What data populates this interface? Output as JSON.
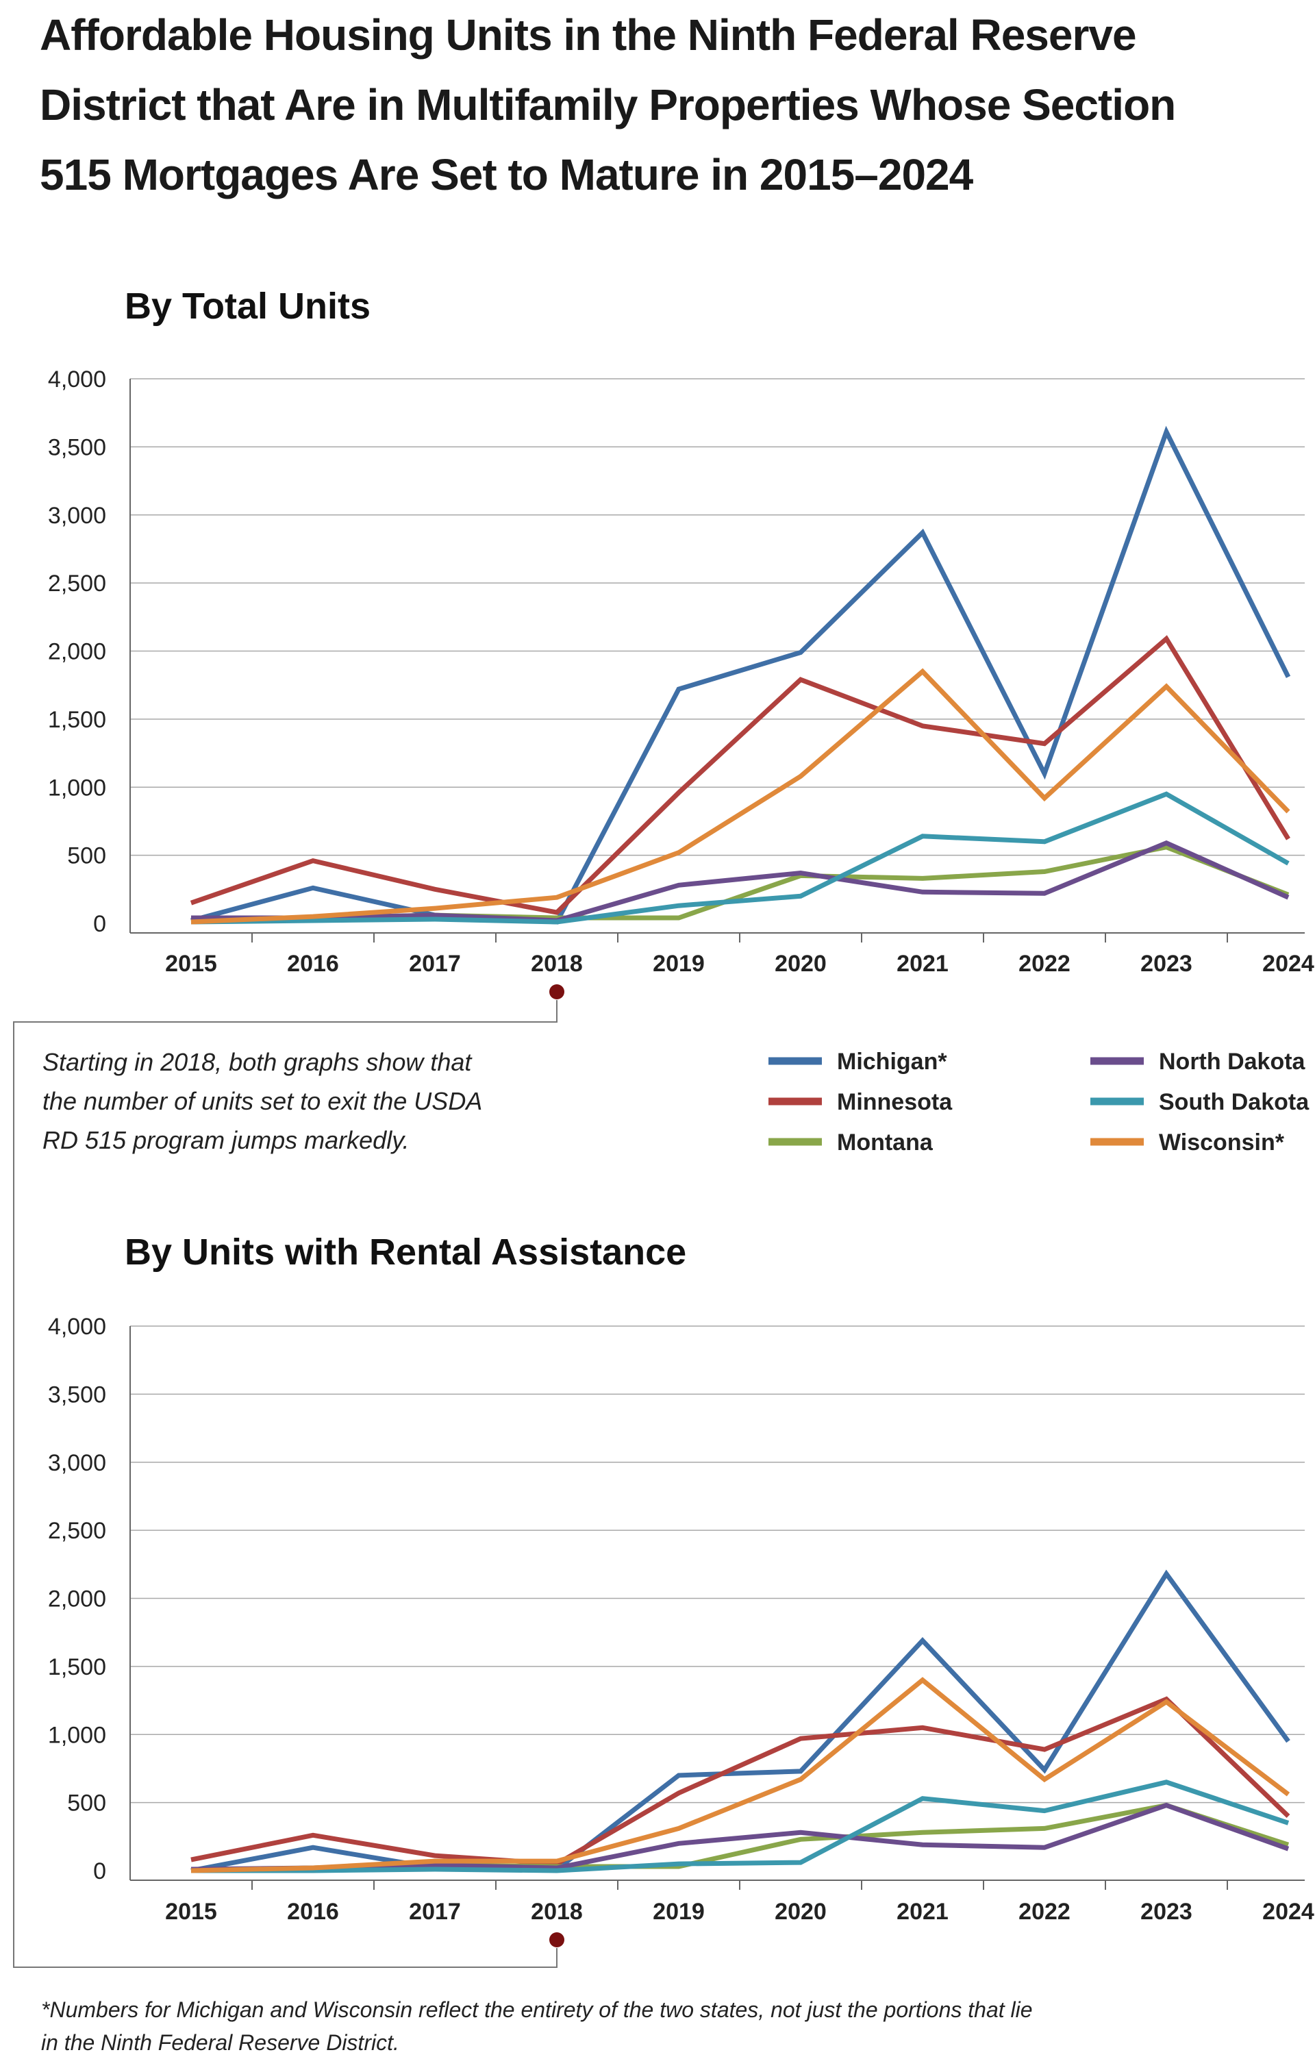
{
  "title_lines": [
    "Affordable Housing Units in the Ninth Federal Reserve",
    "District that Are in Multifamily Properties Whose Section",
    "515 Mortgages Are Set to Mature in 2015–2024"
  ],
  "annotation_lines": [
    "Starting in 2018, both graphs show that",
    "the number of units set to exit the USDA",
    "RD 515 program jumps markedly."
  ],
  "footnote_lines": [
    "*Numbers for Michigan and Wisconsin reflect the entirety of the two states, not just the portions that lie",
    "in the Ninth Federal Reserve District."
  ],
  "legend": [
    {
      "label": "Michigan*",
      "color": "#3f6fa6"
    },
    {
      "label": "Minnesota",
      "color": "#b0413e"
    },
    {
      "label": "Montana",
      "color": "#89a64a"
    },
    {
      "label": "North Dakota",
      "color": "#6a4d8c"
    },
    {
      "label": "South Dakota",
      "color": "#3b98ad"
    },
    {
      "label": "Wisconsin*",
      "color": "#e0893a"
    }
  ],
  "highlight_year": "2018",
  "highlight_color": "#7a1010",
  "chart_data": [
    {
      "type": "line",
      "title": "By Total Units",
      "categories": [
        "2015",
        "2016",
        "2017",
        "2018",
        "2019",
        "2020",
        "2021",
        "2022",
        "2023",
        "2024"
      ],
      "ylim": [
        0,
        4000
      ],
      "yticks": [
        "0",
        "500",
        "1,000",
        "1,500",
        "2,000",
        "2,500",
        "3,000",
        "3,500",
        "4,000"
      ],
      "grid": true,
      "series": [
        {
          "name": "Michigan*",
          "color": "#3f6fa6",
          "values": [
            20,
            260,
            60,
            10,
            1720,
            1990,
            2870,
            1100,
            3610,
            1810
          ]
        },
        {
          "name": "Minnesota",
          "color": "#b0413e",
          "values": [
            150,
            460,
            250,
            80,
            960,
            1790,
            1450,
            1320,
            2090,
            620
          ]
        },
        {
          "name": "Montana",
          "color": "#89a64a",
          "values": [
            30,
            40,
            60,
            40,
            40,
            350,
            330,
            380,
            560,
            210
          ]
        },
        {
          "name": "North Dakota",
          "color": "#6a4d8c",
          "values": [
            40,
            40,
            60,
            20,
            280,
            370,
            230,
            220,
            590,
            190
          ]
        },
        {
          "name": "South Dakota",
          "color": "#3b98ad",
          "values": [
            10,
            20,
            30,
            10,
            130,
            200,
            640,
            600,
            950,
            440
          ]
        },
        {
          "name": "Wisconsin*",
          "color": "#e0893a",
          "values": [
            10,
            50,
            110,
            190,
            520,
            1080,
            1850,
            920,
            1740,
            820
          ]
        }
      ]
    },
    {
      "type": "line",
      "title": "By Units with Rental Assistance",
      "categories": [
        "2015",
        "2016",
        "2017",
        "2018",
        "2019",
        "2020",
        "2021",
        "2022",
        "2023",
        "2024"
      ],
      "ylim": [
        0,
        4000
      ],
      "yticks": [
        "0",
        "500",
        "1,000",
        "1,500",
        "2,000",
        "2,500",
        "3,000",
        "3,500",
        "4,000"
      ],
      "grid": true,
      "series": [
        {
          "name": "Michigan*",
          "color": "#3f6fa6",
          "values": [
            0,
            170,
            20,
            10,
            700,
            730,
            1690,
            740,
            2180,
            950
          ]
        },
        {
          "name": "Minnesota",
          "color": "#b0413e",
          "values": [
            80,
            260,
            110,
            50,
            570,
            970,
            1050,
            890,
            1260,
            400
          ]
        },
        {
          "name": "Montana",
          "color": "#89a64a",
          "values": [
            0,
            20,
            40,
            30,
            30,
            230,
            280,
            310,
            480,
            190
          ]
        },
        {
          "name": "North Dakota",
          "color": "#6a4d8c",
          "values": [
            10,
            20,
            40,
            20,
            200,
            280,
            190,
            170,
            480,
            160
          ]
        },
        {
          "name": "South Dakota",
          "color": "#3b98ad",
          "values": [
            0,
            0,
            10,
            0,
            50,
            60,
            530,
            440,
            650,
            350
          ]
        },
        {
          "name": "Wisconsin*",
          "color": "#e0893a",
          "values": [
            0,
            20,
            70,
            70,
            310,
            670,
            1400,
            670,
            1240,
            560
          ]
        }
      ]
    }
  ]
}
